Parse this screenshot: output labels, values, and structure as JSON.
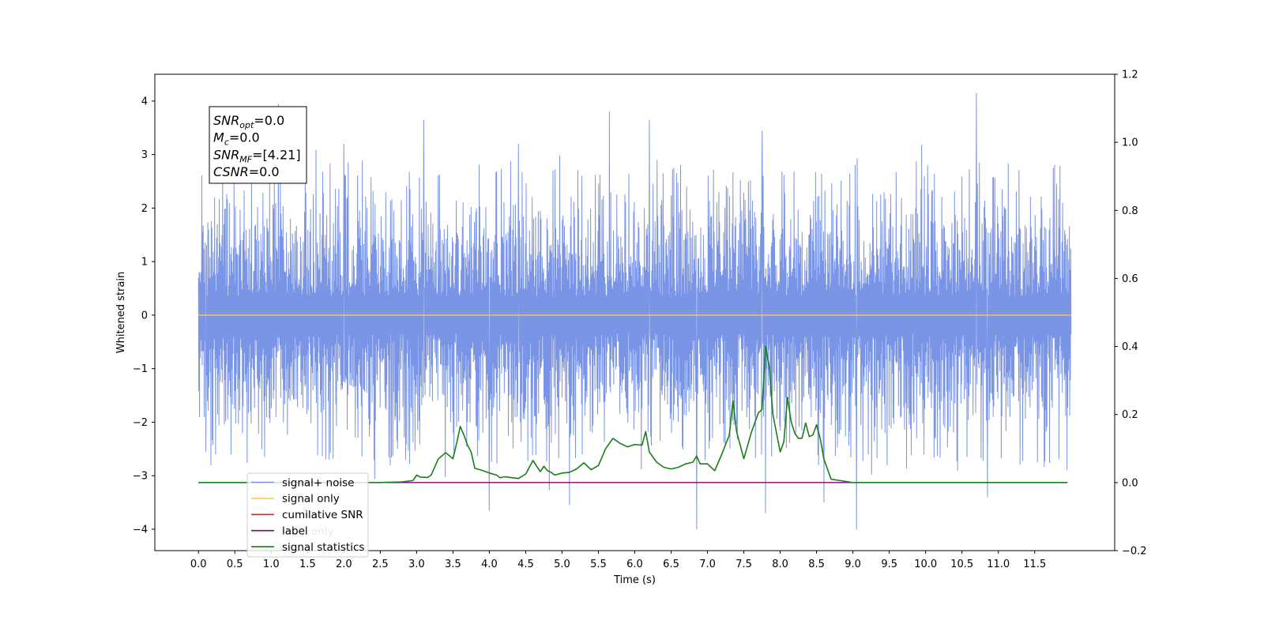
{
  "chart_data": {
    "type": "line",
    "title": "",
    "xlabel": "Time (s)",
    "ylabel": "Whitened strain",
    "y2label": "",
    "xlim": [
      -0.6,
      12.6
    ],
    "ylim": [
      -4.4,
      4.5
    ],
    "y2lim": [
      -0.2,
      1.2
    ],
    "x_ticks": [
      0.0,
      0.5,
      1.0,
      1.5,
      2.0,
      2.5,
      3.0,
      3.5,
      4.0,
      4.5,
      5.0,
      5.5,
      6.0,
      6.5,
      7.0,
      7.5,
      8.0,
      8.5,
      9.0,
      9.5,
      10.0,
      10.5,
      11.0,
      11.5
    ],
    "x_tick_labels": [
      "0.0",
      "0.5",
      "1.0",
      "1.5",
      "2.0",
      "2.5",
      "3.0",
      "3.5",
      "4.0",
      "4.5",
      "5.0",
      "5.5",
      "6.0",
      "6.5",
      "7.0",
      "7.5",
      "8.0",
      "8.5",
      "9.0",
      "9.5",
      "10.0",
      "10.5",
      "11.0",
      "11.5"
    ],
    "y_ticks": [
      -4,
      -3,
      -2,
      -1,
      0,
      1,
      2,
      3,
      4
    ],
    "y_tick_labels": [
      "−4",
      "−3",
      "−2",
      "−1",
      "0",
      "1",
      "2",
      "3",
      "4"
    ],
    "y2_ticks": [
      -0.2,
      0.0,
      0.2,
      0.4,
      0.6,
      0.8,
      1.0,
      1.2
    ],
    "y2_tick_labels": [
      "−0.2",
      "0.0",
      "0.2",
      "0.4",
      "0.6",
      "0.8",
      "1.0",
      "1.2"
    ],
    "grid": false,
    "legend_placement": "lower-left",
    "legend": [
      {
        "label": "signal+ noise",
        "color": "#7b95e6"
      },
      {
        "label": "signal only",
        "color": "#ffc75a"
      },
      {
        "label": "cumilative SNR",
        "color": "#e8231d"
      },
      {
        "label": "label",
        "color": "#800080"
      },
      {
        "label": "signal statistics",
        "color": "#1c7d1c"
      }
    ],
    "hidden_legend_text": "label only",
    "annotation": {
      "lines": [
        {
          "name": "SNR",
          "sub": "opt",
          "value": "=0.0"
        },
        {
          "name": "M",
          "sub": "c",
          "value": "=0.0"
        },
        {
          "name": "SNR",
          "sub": "MF",
          "value": "=[4.21]"
        },
        {
          "name": "CSNR",
          "sub": "",
          "value": "=0.0"
        }
      ]
    },
    "series": [
      {
        "name": "signal+ noise",
        "axis": "left",
        "color": "#7b95e6",
        "x_range": [
          0.0,
          12.0
        ],
        "amplitude_typical": 1.8,
        "peak_maxima": [
          {
            "x": 1.1,
            "y": 3.95
          },
          {
            "x": 2.0,
            "y": 3.2
          },
          {
            "x": 3.1,
            "y": 3.65
          },
          {
            "x": 4.4,
            "y": 3.2
          },
          {
            "x": 5.65,
            "y": 3.8
          },
          {
            "x": 6.2,
            "y": 3.65
          },
          {
            "x": 7.75,
            "y": 3.45
          },
          {
            "x": 10.7,
            "y": 4.15
          }
        ],
        "peak_minima": [
          {
            "x": 0.1,
            "y": -2.55
          },
          {
            "x": 4.0,
            "y": -3.65
          },
          {
            "x": 5.1,
            "y": -3.55
          },
          {
            "x": 6.85,
            "y": -4.0
          },
          {
            "x": 7.8,
            "y": -3.7
          },
          {
            "x": 8.6,
            "y": -3.5
          },
          {
            "x": 9.05,
            "y": -4.0
          },
          {
            "x": 10.85,
            "y": -3.4
          }
        ]
      },
      {
        "name": "signal only",
        "axis": "left",
        "color": "#ffc75a",
        "x": [
          0.0,
          12.0
        ],
        "y": [
          0.0,
          0.0
        ]
      },
      {
        "name": "label",
        "axis": "right",
        "color": "#800080",
        "x": [
          0.0,
          11.95
        ],
        "y": [
          0.0,
          0.0
        ]
      },
      {
        "name": "signal statistics",
        "axis": "right",
        "color": "#1c7d1c",
        "x": [
          0.0,
          2.5,
          2.8,
          2.95,
          3.0,
          3.05,
          3.15,
          3.2,
          3.3,
          3.4,
          3.5,
          3.55,
          3.6,
          3.65,
          3.7,
          3.75,
          3.8,
          3.9,
          4.0,
          4.1,
          4.15,
          4.2,
          4.25,
          4.4,
          4.5,
          4.6,
          4.7,
          4.75,
          4.8,
          4.85,
          4.9,
          5.0,
          5.1,
          5.2,
          5.3,
          5.4,
          5.5,
          5.6,
          5.7,
          5.8,
          5.9,
          6.0,
          6.1,
          6.15,
          6.2,
          6.3,
          6.4,
          6.5,
          6.6,
          6.7,
          6.8,
          6.85,
          6.9,
          7.0,
          7.1,
          7.2,
          7.3,
          7.35,
          7.4,
          7.5,
          7.6,
          7.7,
          7.75,
          7.8,
          7.85,
          7.9,
          8.0,
          8.05,
          8.1,
          8.15,
          8.2,
          8.25,
          8.3,
          8.35,
          8.4,
          8.45,
          8.5,
          8.55,
          8.6,
          8.7,
          9.0,
          9.5,
          10.0,
          11.0,
          11.95
        ],
        "y": [
          0.0,
          0.0,
          0.002,
          0.006,
          0.022,
          0.016,
          0.015,
          0.022,
          0.07,
          0.088,
          0.07,
          0.115,
          0.165,
          0.14,
          0.11,
          0.09,
          0.042,
          0.036,
          0.028,
          0.022,
          0.014,
          0.017,
          0.016,
          0.012,
          0.025,
          0.065,
          0.032,
          0.048,
          0.035,
          0.03,
          0.022,
          0.028,
          0.03,
          0.04,
          0.058,
          0.038,
          0.05,
          0.1,
          0.13,
          0.115,
          0.105,
          0.112,
          0.11,
          0.15,
          0.09,
          0.06,
          0.045,
          0.04,
          0.045,
          0.055,
          0.06,
          0.078,
          0.055,
          0.055,
          0.035,
          0.085,
          0.14,
          0.24,
          0.15,
          0.07,
          0.145,
          0.205,
          0.215,
          0.4,
          0.34,
          0.2,
          0.09,
          0.12,
          0.25,
          0.18,
          0.145,
          0.13,
          0.13,
          0.175,
          0.135,
          0.14,
          0.17,
          0.13,
          0.07,
          0.01,
          0.0,
          0.0,
          0.0,
          0.0,
          0.0
        ]
      }
    ]
  }
}
